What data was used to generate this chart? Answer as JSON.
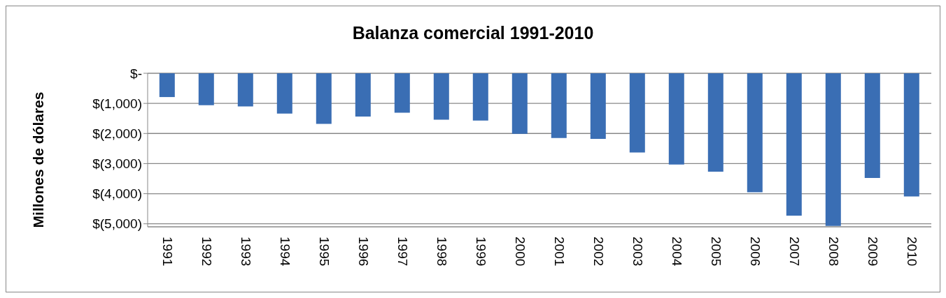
{
  "chart_data": {
    "type": "bar",
    "title": "Balanza comercial 1991-2010",
    "ylabel": "Millones de dólares",
    "categories": [
      "1991",
      "1992",
      "1993",
      "1994",
      "1995",
      "1996",
      "1997",
      "1998",
      "1999",
      "2000",
      "2001",
      "2002",
      "2003",
      "2004",
      "2005",
      "2006",
      "2007",
      "2008",
      "2009",
      "2010"
    ],
    "values": [
      -790,
      -1060,
      -1100,
      -1340,
      -1680,
      -1440,
      -1310,
      -1540,
      -1570,
      -2010,
      -2150,
      -2180,
      -2630,
      -3030,
      -3270,
      -3950,
      -4730,
      -5070,
      -3480,
      -4090
    ],
    "color": "#3a6eb4",
    "ylim": [
      -5100,
      0
    ],
    "yticks": [
      {
        "value": 0,
        "label": "$-"
      },
      {
        "value": -1000,
        "label": "$(1,000)"
      },
      {
        "value": -2000,
        "label": "$(2,000)"
      },
      {
        "value": -3000,
        "label": "$(3,000)"
      },
      {
        "value": -4000,
        "label": "$(4,000)"
      },
      {
        "value": -5000,
        "label": "$(5,000)"
      }
    ],
    "grid": "y",
    "legend": false
  }
}
